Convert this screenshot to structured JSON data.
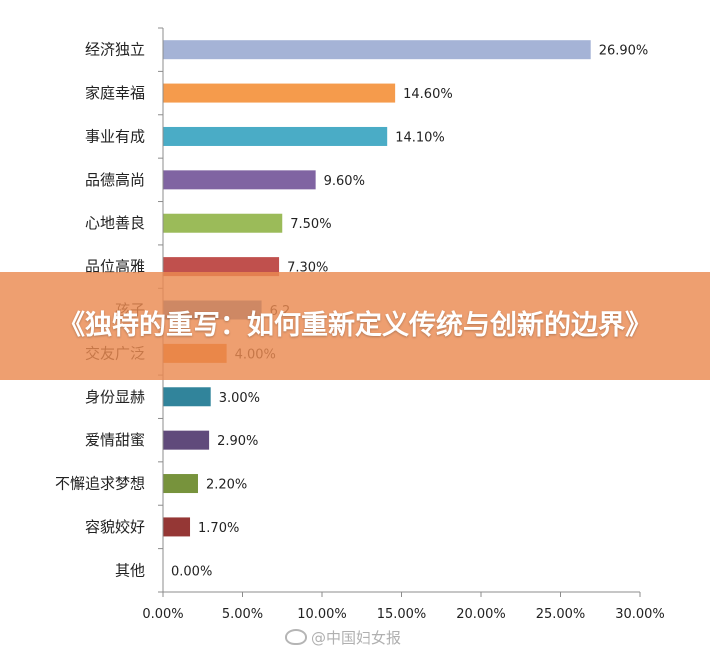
{
  "chart_data": {
    "type": "bar",
    "orientation": "horizontal",
    "categories": [
      "经济独立",
      "家庭幸福",
      "事业有成",
      "品德高尚",
      "心地善良",
      "品位高雅",
      "孩子",
      "交友广泛",
      "身份显赫",
      "爱情甜蜜",
      "不懈追求梦想",
      "容貌姣好",
      "其他"
    ],
    "values": [
      26.9,
      14.6,
      14.1,
      9.6,
      7.5,
      7.3,
      6.2,
      4.0,
      3.0,
      2.9,
      2.2,
      1.7,
      0.0
    ],
    "value_labels": [
      "26.90%",
      "14.60%",
      "14.10%",
      "9.60%",
      "7.50%",
      "7.30%",
      "6.2",
      "4.00%",
      "3.00%",
      "2.90%",
      "2.20%",
      "1.70%",
      "0.00%"
    ],
    "colors": [
      "#a5b3d6",
      "#f59b4c",
      "#4aacc6",
      "#8064a2",
      "#9bbb59",
      "#c0504d",
      "#4f81bd",
      "#e7792a",
      "#31849b",
      "#604a7b",
      "#77933c",
      "#953735",
      "#1f497d"
    ],
    "xlim": [
      0,
      30
    ],
    "xticks": [
      "0.00%",
      "5.00%",
      "10.00%",
      "15.00%",
      "20.00%",
      "25.00%",
      "30.00%"
    ],
    "grid": false,
    "legend": "none"
  },
  "banner": {
    "title": "《独特的重写：如何重新定义传统与创新的边界》"
  },
  "watermark": {
    "text": "@中国妇女报"
  }
}
